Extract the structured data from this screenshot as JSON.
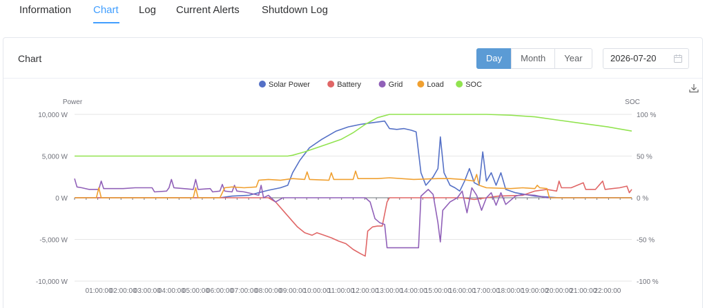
{
  "tabs": [
    {
      "label": "Information"
    },
    {
      "label": "Chart",
      "active": true
    },
    {
      "label": "Log"
    },
    {
      "label": "Current Alerts"
    },
    {
      "label": "Shutdown Log"
    }
  ],
  "card": {
    "title": "Chart",
    "period_buttons": [
      {
        "label": "Day",
        "active": true
      },
      {
        "label": "Month"
      },
      {
        "label": "Year"
      }
    ],
    "date_value": "2026-07-20"
  },
  "icons": {
    "calendar": "calendar-icon",
    "download": "download-icon"
  },
  "chart_data": {
    "type": "line",
    "left_axis_title": "Power",
    "right_axis_title": "SOC",
    "y_left": {
      "min": -10000,
      "max": 10000,
      "ticks": [
        10000,
        5000,
        0,
        -5000,
        -10000
      ],
      "tick_labels": [
        "10,000 W",
        "5,000 W",
        "0 W",
        "-5,000 W",
        "-10,000 W"
      ]
    },
    "y_right": {
      "min": -100,
      "max": 100,
      "tick_labels": [
        "100 %",
        "50 %",
        "0 %",
        "-50 %",
        "-100 %"
      ]
    },
    "x_tick_labels": [
      "01:00:00",
      "02:00:00",
      "03:00:00",
      "04:00:00",
      "05:00:00",
      "06:00:00",
      "07:00:00",
      "08:00:00",
      "09:00:00",
      "10:00:00",
      "11:00:00",
      "12:00:00",
      "13:00:00",
      "14:00:00",
      "15:00:00",
      "16:00:00",
      "17:00:00",
      "18:00:00",
      "19:00:00",
      "20:00:00",
      "21:00:00",
      "22:00:00"
    ],
    "x_range_hours": [
      0,
      23
    ],
    "grid": true,
    "legend_position": "top-center",
    "series": [
      {
        "name": "Solar Power",
        "color": "#5470c6",
        "axis": "left",
        "points": [
          [
            0,
            0
          ],
          [
            6,
            0
          ],
          [
            6.5,
            200
          ],
          [
            7.2,
            300
          ],
          [
            7.6,
            600
          ],
          [
            8.0,
            900
          ],
          [
            8.5,
            1200
          ],
          [
            8.8,
            1500
          ],
          [
            9.0,
            3000
          ],
          [
            9.3,
            4500
          ],
          [
            9.7,
            6000
          ],
          [
            10.2,
            7000
          ],
          [
            10.8,
            8000
          ],
          [
            11.3,
            8500
          ],
          [
            11.8,
            8800
          ],
          [
            12.3,
            9000
          ],
          [
            12.8,
            9200
          ],
          [
            13.0,
            8300
          ],
          [
            13.3,
            8200
          ],
          [
            13.6,
            8300
          ],
          [
            13.9,
            8100
          ],
          [
            14.1,
            7900
          ],
          [
            14.3,
            3000
          ],
          [
            14.5,
            1500
          ],
          [
            14.8,
            2500
          ],
          [
            15.0,
            3500
          ],
          [
            15.1,
            7300
          ],
          [
            15.25,
            3000
          ],
          [
            15.5,
            1500
          ],
          [
            15.7,
            1200
          ],
          [
            15.9,
            800
          ],
          [
            16.1,
            2000
          ],
          [
            16.3,
            3500
          ],
          [
            16.5,
            1800
          ],
          [
            16.7,
            1500
          ],
          [
            16.85,
            5500
          ],
          [
            17.0,
            2000
          ],
          [
            17.2,
            3000
          ],
          [
            17.4,
            1500
          ],
          [
            17.6,
            3000
          ],
          [
            17.8,
            1000
          ],
          [
            18.2,
            600
          ],
          [
            18.6,
            400
          ],
          [
            19.0,
            200
          ],
          [
            19.5,
            100
          ],
          [
            20.0,
            0
          ],
          [
            23,
            0
          ]
        ]
      },
      {
        "name": "Battery",
        "color": "#e06666",
        "axis": "left",
        "points": [
          [
            0,
            0
          ],
          [
            8.0,
            0
          ],
          [
            8.3,
            -500
          ],
          [
            8.6,
            -1500
          ],
          [
            8.9,
            -2500
          ],
          [
            9.2,
            -3500
          ],
          [
            9.5,
            -4200
          ],
          [
            9.8,
            -4500
          ],
          [
            10.0,
            -4200
          ],
          [
            10.3,
            -4500
          ],
          [
            10.6,
            -4800
          ],
          [
            10.9,
            -5200
          ],
          [
            11.2,
            -5500
          ],
          [
            11.5,
            -6200
          ],
          [
            11.8,
            -6700
          ],
          [
            12.0,
            -7000
          ],
          [
            12.1,
            -4000
          ],
          [
            12.3,
            -3500
          ],
          [
            12.5,
            -3400
          ],
          [
            12.7,
            -3400
          ],
          [
            12.9,
            -500
          ],
          [
            13.0,
            0
          ],
          [
            15.0,
            0
          ],
          [
            16.0,
            0
          ],
          [
            16.5,
            -200
          ],
          [
            17.5,
            200
          ],
          [
            18.5,
            300
          ],
          [
            19.0,
            800
          ],
          [
            19.5,
            1000
          ],
          [
            19.9,
            800
          ],
          [
            20.0,
            2000
          ],
          [
            20.1,
            1200
          ],
          [
            20.5,
            1200
          ],
          [
            21.0,
            1800
          ],
          [
            21.1,
            1000
          ],
          [
            21.5,
            1000
          ],
          [
            21.8,
            2000
          ],
          [
            21.9,
            1000
          ],
          [
            22.5,
            1200
          ],
          [
            22.8,
            1400
          ],
          [
            22.9,
            600
          ],
          [
            23,
            1000
          ]
        ]
      },
      {
        "name": "Grid",
        "color": "#9060b8",
        "axis": "left",
        "points": [
          [
            0,
            2300
          ],
          [
            0.1,
            1300
          ],
          [
            0.3,
            1200
          ],
          [
            0.6,
            1000
          ],
          [
            1.0,
            1000
          ],
          [
            1.1,
            2000
          ],
          [
            1.2,
            1100
          ],
          [
            2.0,
            1100
          ],
          [
            2.5,
            1200
          ],
          [
            3.2,
            1200
          ],
          [
            3.3,
            700
          ],
          [
            3.8,
            800
          ],
          [
            3.9,
            1200
          ],
          [
            4.0,
            2200
          ],
          [
            4.1,
            1200
          ],
          [
            4.5,
            1100
          ],
          [
            4.9,
            1000
          ],
          [
            5.0,
            2200
          ],
          [
            5.1,
            1000
          ],
          [
            5.6,
            1100
          ],
          [
            5.7,
            700
          ],
          [
            6.0,
            800
          ],
          [
            6.1,
            1600
          ],
          [
            6.2,
            800
          ],
          [
            6.5,
            700
          ],
          [
            6.6,
            1500
          ],
          [
            6.7,
            800
          ],
          [
            7.0,
            700
          ],
          [
            7.3,
            500
          ],
          [
            7.6,
            300
          ],
          [
            7.7,
            1500
          ],
          [
            7.8,
            0
          ],
          [
            8.0,
            300
          ],
          [
            8.3,
            -500
          ],
          [
            8.6,
            0
          ],
          [
            9.0,
            0
          ],
          [
            12.0,
            0
          ],
          [
            12.2,
            -500
          ],
          [
            12.4,
            -2500
          ],
          [
            12.6,
            -3000
          ],
          [
            12.8,
            -3200
          ],
          [
            12.9,
            -6000
          ],
          [
            13.5,
            -6000
          ],
          [
            13.9,
            -6000
          ],
          [
            14.2,
            -6000
          ],
          [
            14.3,
            200
          ],
          [
            14.6,
            1000
          ],
          [
            14.8,
            400
          ],
          [
            15.0,
            -3000
          ],
          [
            15.1,
            -5300
          ],
          [
            15.2,
            -1500
          ],
          [
            15.5,
            -500
          ],
          [
            15.8,
            0
          ],
          [
            16.0,
            800
          ],
          [
            16.2,
            -1800
          ],
          [
            16.4,
            1200
          ],
          [
            16.6,
            300
          ],
          [
            16.8,
            -1500
          ],
          [
            17.0,
            0
          ],
          [
            17.2,
            600
          ],
          [
            17.4,
            -900
          ],
          [
            17.6,
            600
          ],
          [
            17.8,
            -800
          ],
          [
            18.2,
            200
          ],
          [
            18.5,
            400
          ],
          [
            19.0,
            300
          ],
          [
            19.5,
            0
          ],
          [
            23,
            0
          ]
        ]
      },
      {
        "name": "Load",
        "color": "#f0a030",
        "axis": "left",
        "points": [
          [
            0,
            0
          ],
          [
            0.9,
            0
          ],
          [
            1.0,
            1200
          ],
          [
            1.1,
            0
          ],
          [
            4.9,
            0
          ],
          [
            5.0,
            1200
          ],
          [
            5.1,
            0
          ],
          [
            6.0,
            0
          ],
          [
            6.2,
            1200
          ],
          [
            6.5,
            1300
          ],
          [
            7.0,
            1200
          ],
          [
            7.5,
            1300
          ],
          [
            7.6,
            2100
          ],
          [
            8.0,
            2200
          ],
          [
            8.5,
            2100
          ],
          [
            9.0,
            2300
          ],
          [
            9.5,
            2200
          ],
          [
            9.6,
            3100
          ],
          [
            9.7,
            2200
          ],
          [
            10.5,
            2100
          ],
          [
            10.6,
            3000
          ],
          [
            10.7,
            2200
          ],
          [
            11.5,
            2200
          ],
          [
            11.6,
            3200
          ],
          [
            11.7,
            2300
          ],
          [
            12.5,
            2300
          ],
          [
            13.0,
            2400
          ],
          [
            14.0,
            2200
          ],
          [
            15.0,
            2300
          ],
          [
            15.5,
            2300
          ],
          [
            16.0,
            2200
          ],
          [
            16.5,
            2000
          ],
          [
            16.6,
            2800
          ],
          [
            16.7,
            1500
          ],
          [
            17.0,
            1200
          ],
          [
            18.0,
            1100
          ],
          [
            18.5,
            1200
          ],
          [
            19.0,
            1100
          ],
          [
            19.1,
            1500
          ],
          [
            19.2,
            1200
          ],
          [
            19.5,
            1100
          ],
          [
            19.6,
            0
          ],
          [
            23,
            0
          ]
        ]
      },
      {
        "name": "SOC",
        "color": "#91e34f",
        "axis": "right",
        "points": [
          [
            0,
            50
          ],
          [
            8.8,
            50
          ],
          [
            9.0,
            51
          ],
          [
            9.5,
            55
          ],
          [
            10.0,
            60
          ],
          [
            10.5,
            65
          ],
          [
            11.0,
            70
          ],
          [
            11.5,
            78
          ],
          [
            12.0,
            88
          ],
          [
            12.5,
            96
          ],
          [
            13.0,
            100
          ],
          [
            16.0,
            100
          ],
          [
            17.0,
            100
          ],
          [
            18.0,
            99
          ],
          [
            19.0,
            97
          ],
          [
            20.0,
            93
          ],
          [
            21.0,
            89
          ],
          [
            22.0,
            85
          ],
          [
            23.0,
            80
          ]
        ]
      }
    ]
  }
}
